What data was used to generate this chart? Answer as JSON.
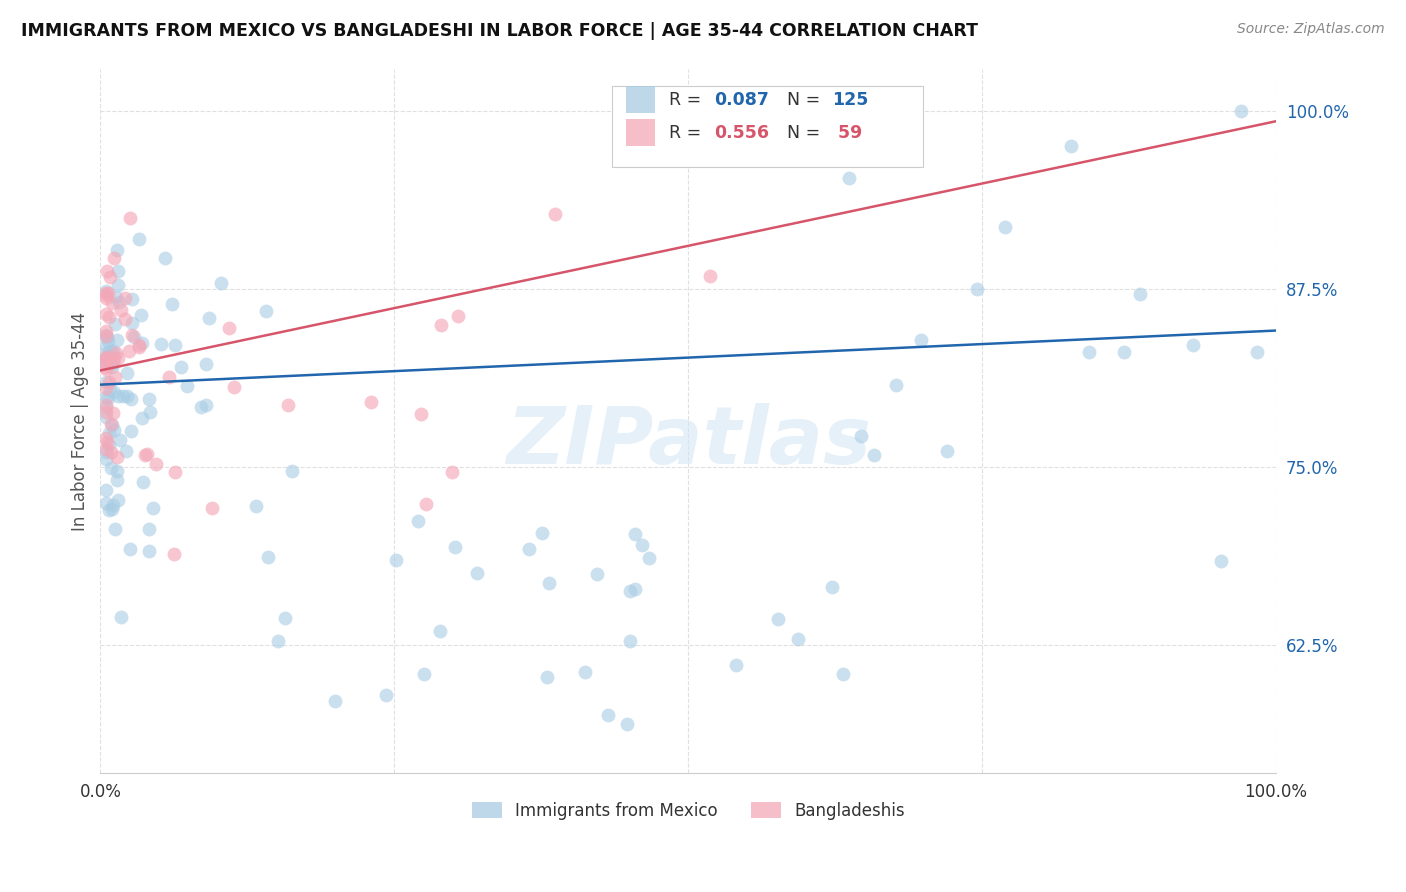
{
  "title": "IMMIGRANTS FROM MEXICO VS BANGLADESHI IN LABOR FORCE | AGE 35-44 CORRELATION CHART",
  "source": "Source: ZipAtlas.com",
  "ylabel": "In Labor Force | Age 35-44",
  "ytick_positions": [
    0.625,
    0.75,
    0.875,
    1.0
  ],
  "ytick_labels": [
    "62.5%",
    "75.0%",
    "87.5%",
    "100.0%"
  ],
  "xlim": [
    0.0,
    1.0
  ],
  "ylim": [
    0.535,
    1.03
  ],
  "legend_blue_R": "0.087",
  "legend_blue_N": "125",
  "legend_pink_R": "0.556",
  "legend_pink_N": "59",
  "blue_color": "#a8cce4",
  "pink_color": "#f4a8b8",
  "blue_line_color": "#2166ac",
  "pink_line_color": "#d6556a",
  "blue_text_color": "#2166ac",
  "pink_text_color": "#d6556a",
  "watermark": "ZIPatlas",
  "blue_intercept": 0.808,
  "blue_slope": 0.038,
  "pink_intercept": 0.818,
  "pink_slope": 0.175,
  "bg_color": "#ffffff",
  "grid_color": "#e0e0e0",
  "label_color": "#555555",
  "tick_label_color": "#2166ac"
}
